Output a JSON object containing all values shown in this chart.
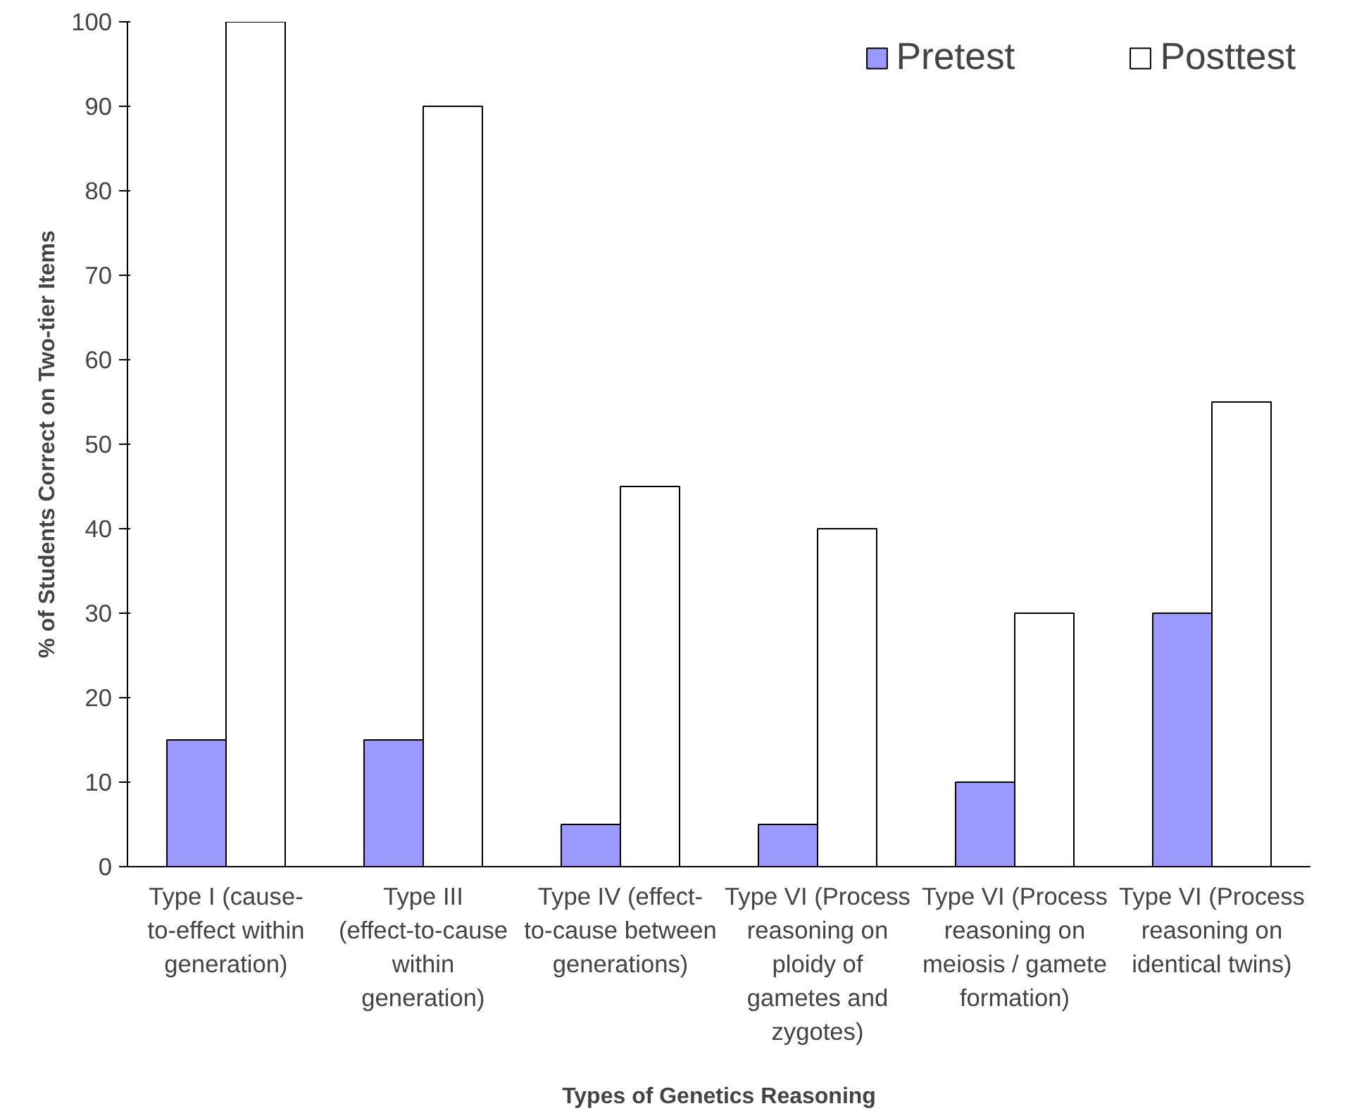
{
  "chart_data": {
    "type": "bar",
    "xlabel": "Types of Genetics Reasoning",
    "ylabel": "% of Students Correct on Two-tier Items",
    "categories": [
      "Type I (cause-to-effect within generation)",
      "Type III (effect-to-cause within generation)",
      "Type IV (effect-to-cause between generations)",
      "Type VI (Process reasoning on ploidy of gametes and zygotes)",
      "Type VI (Process reasoning on meiosis / gamete formation)",
      "Type VI (Process reasoning on identical twins)"
    ],
    "series": [
      {
        "name": "Pretest",
        "color": "#9999ff",
        "values": [
          15,
          15,
          5,
          5,
          10,
          30
        ]
      },
      {
        "name": "Posttest",
        "color": "#ffffff",
        "values": [
          100,
          90,
          45,
          40,
          30,
          55
        ]
      }
    ],
    "ylim": [
      0,
      100
    ],
    "yticks": [
      0,
      10,
      20,
      30,
      40,
      50,
      60,
      70,
      80,
      90,
      100
    ],
    "grid": false,
    "legend": "top right"
  }
}
